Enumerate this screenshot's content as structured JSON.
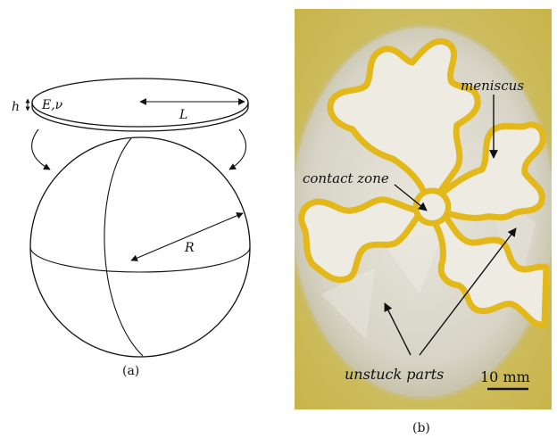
{
  "panel_a": {
    "caption": "(a)",
    "labels": {
      "h": "h",
      "E_nu": "E,ν",
      "L": "L",
      "R": "R"
    }
  },
  "panel_b": {
    "caption": "(b)",
    "annotations": {
      "meniscus": "meniscus",
      "contact_zone": "contact zone",
      "unstuck_parts": "unstuck parts"
    },
    "scale_bar": "10 mm"
  },
  "colors": {
    "ink": "#111111",
    "meniscus_yellow": "#e2b81a",
    "photo_bg": "#d8d6c8"
  }
}
